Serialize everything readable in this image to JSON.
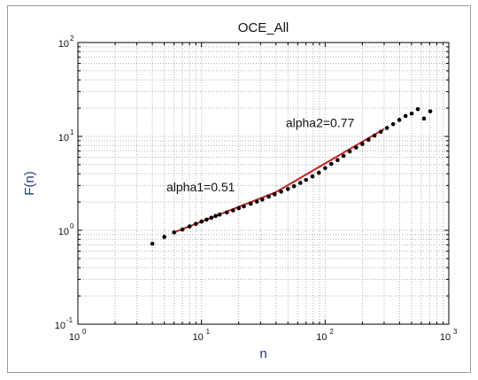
{
  "chart_data": {
    "type": "scatter",
    "title": "OCE_All",
    "xlabel": "n",
    "ylabel": "F(n)",
    "xscale": "log",
    "yscale": "log",
    "xlim": [
      1,
      1000
    ],
    "ylim": [
      0.1,
      100
    ],
    "grid": true,
    "x_ticks": [
      {
        "base": "10",
        "exp": "0"
      },
      {
        "base": "10",
        "exp": "1"
      },
      {
        "base": "10",
        "exp": "2"
      },
      {
        "base": "10",
        "exp": "3"
      }
    ],
    "y_ticks": [
      {
        "base": "10",
        "exp": "-1"
      },
      {
        "base": "10",
        "exp": "0"
      },
      {
        "base": "10",
        "exp": "1"
      },
      {
        "base": "10",
        "exp": "2"
      }
    ],
    "colors": {
      "points": "#000000",
      "fit": "#cc2222",
      "grid": "#b0b0b0"
    },
    "series": [
      {
        "type": "scatter",
        "points": [
          [
            4,
            0.72
          ],
          [
            5,
            0.85
          ],
          [
            6,
            0.95
          ],
          [
            7,
            1.02
          ],
          [
            8,
            1.1
          ],
          [
            9,
            1.17
          ],
          [
            10,
            1.24
          ],
          [
            11,
            1.3
          ],
          [
            12,
            1.36
          ],
          [
            13,
            1.42
          ],
          [
            14,
            1.47
          ],
          [
            16,
            1.55
          ],
          [
            18,
            1.63
          ],
          [
            20,
            1.72
          ],
          [
            22,
            1.8
          ],
          [
            25,
            1.92
          ],
          [
            28,
            2.02
          ],
          [
            31,
            2.12
          ],
          [
            35,
            2.28
          ],
          [
            39,
            2.42
          ],
          [
            44,
            2.58
          ],
          [
            50,
            2.75
          ],
          [
            56,
            2.95
          ],
          [
            63,
            3.2
          ],
          [
            70,
            3.45
          ],
          [
            79,
            3.75
          ],
          [
            89,
            4.1
          ],
          [
            100,
            4.6
          ],
          [
            112,
            5.1
          ],
          [
            126,
            5.6
          ],
          [
            141,
            6.2
          ],
          [
            158,
            6.9
          ],
          [
            178,
            7.6
          ],
          [
            200,
            8.3
          ],
          [
            224,
            9.2
          ],
          [
            251,
            10.2
          ],
          [
            282,
            11.2
          ],
          [
            316,
            12.3
          ],
          [
            355,
            13.5
          ],
          [
            398,
            15.0
          ],
          [
            447,
            16.5
          ],
          [
            501,
            17.5
          ],
          [
            562,
            19.5
          ],
          [
            630,
            15.5
          ],
          [
            708,
            18.5
          ]
        ]
      },
      {
        "type": "line",
        "segments": [
          {
            "x": [
              6,
              40
            ],
            "y": [
              0.95,
              2.55
            ]
          },
          {
            "x": [
              40,
              300
            ],
            "y": [
              2.55,
              12.0
            ]
          }
        ]
      }
    ],
    "annotations": [
      {
        "text": "alpha1=0.51",
        "x": 5.2,
        "y": 2.6
      },
      {
        "text": "alpha2=0.77",
        "x": 48,
        "y": 12.5
      }
    ]
  }
}
